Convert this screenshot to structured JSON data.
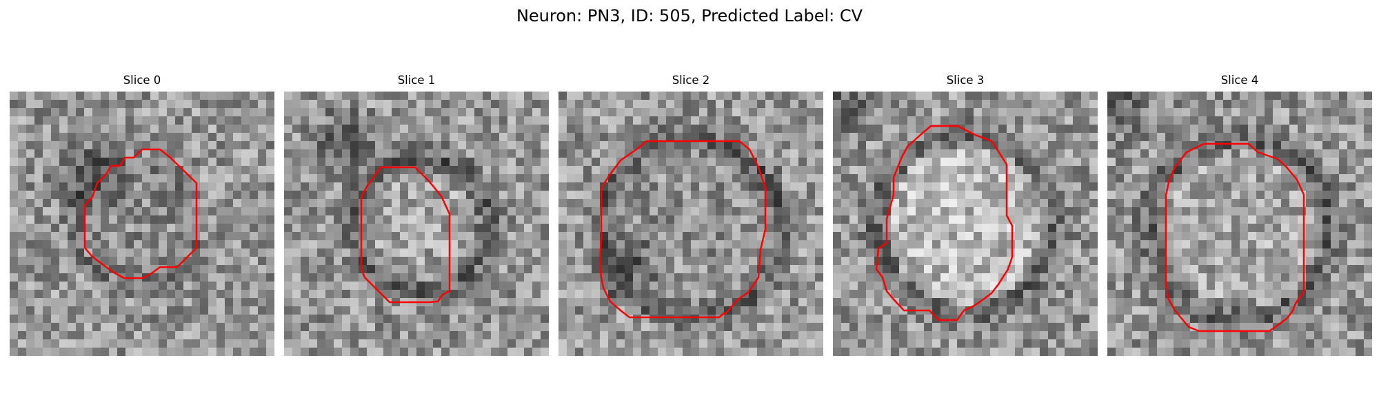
{
  "figure": {
    "title": "Neuron: PN3, ID: 505, Predicted Label: CV"
  },
  "colors": {
    "contour": "#ff0000",
    "background": "#ffffff"
  },
  "panels": [
    {
      "title": "Slice 0"
    },
    {
      "title": "Slice 1"
    },
    {
      "title": "Slice 2"
    },
    {
      "title": "Slice 3"
    },
    {
      "title": "Slice 4"
    }
  ]
}
